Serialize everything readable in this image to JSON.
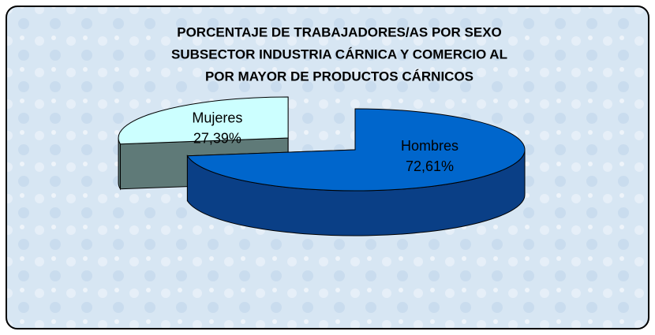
{
  "chart_data": {
    "type": "pie",
    "title": [
      "PORCENTAJE DE TRABAJADORES/AS POR SEXO",
      "SUBSECTOR INDUSTRIA CÁRNICA Y COMERCIO AL",
      "POR MAYOR DE PRODUCTOS CÁRNICOS"
    ],
    "categories": [
      "Hombres",
      "Mujeres"
    ],
    "values": [
      72.61,
      27.39
    ],
    "value_labels": [
      "72,61%",
      "27,39%"
    ],
    "colors": [
      "#0066cc",
      "#ccffff"
    ],
    "side_colors": [
      "#0a3f86",
      "#5f7a78"
    ],
    "exploded": [
      false,
      true
    ]
  }
}
